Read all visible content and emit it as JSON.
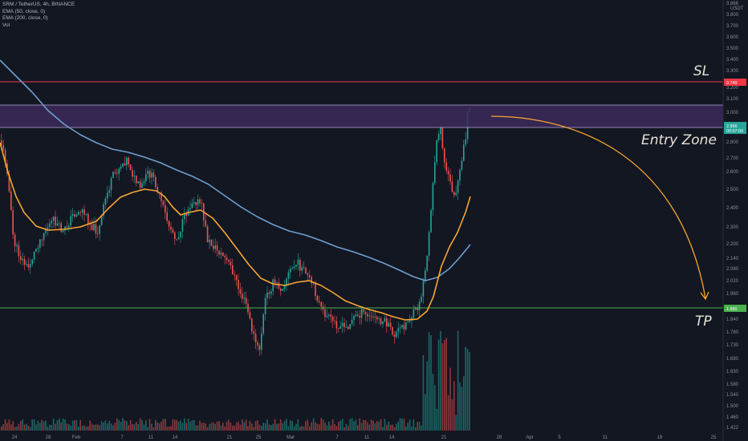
{
  "header": {
    "symbol_line": "SRM / TetherUS, 4h, BINANCE",
    "ema50_line": "EMA (50, close, 0)",
    "ema200_line": "EMA (200, close, 0)",
    "vol_line": "Vol"
  },
  "axis": {
    "currency_top": "3.866",
    "currency_unit": "USDT"
  },
  "annotations": {
    "sl": "SL",
    "entry": "Entry Zone",
    "tp": "TP"
  },
  "price_tags": {
    "sl": "3.740",
    "current_price": "2.956",
    "countdown": "00:07:00",
    "tp": "1.890"
  },
  "colors": {
    "background": "#131722",
    "sl_line": "#f23645",
    "tp_line": "#4caf50",
    "entry_zone_fill": "#3c2a5a",
    "ema50": "#f7a531",
    "ema200": "#6e9fcd",
    "candle_up": "#26a69a",
    "candle_down": "#ef5350",
    "forecast_arrow": "#f7a531"
  },
  "chart_data": {
    "type": "candlestick",
    "symbol": "SRM / TetherUS",
    "timeframe": "4h",
    "exchange": "BINANCE",
    "y_ticks": [
      "3.800",
      "3.700",
      "3.600",
      "3.500",
      "3.400",
      "3.300",
      "3.200",
      "3.100",
      "3.000",
      "2.900",
      "2.800",
      "2.700",
      "2.600",
      "2.500",
      "2.400",
      "2.300",
      "2.200",
      "2.140",
      "2.080",
      "2.020",
      "1.960",
      "1.900",
      "1.840",
      "1.780",
      "1.730",
      "1.680",
      "1.630",
      "1.580",
      "1.540",
      "1.500",
      "1.460",
      "1.422"
    ],
    "x_ticks": [
      "24",
      "28",
      "Feb",
      "7",
      "11",
      "14",
      "21",
      "25",
      "Mar",
      "7",
      "11",
      "14",
      "21",
      "28",
      "Apr",
      "5",
      "11",
      "18",
      "25"
    ],
    "key_points": [
      {
        "date": "Jan 20",
        "close": 2.85
      },
      {
        "date": "Jan 24",
        "close": 2.05
      },
      {
        "date": "Jan 28",
        "close": 2.35
      },
      {
        "date": "Feb 5",
        "close": 2.7
      },
      {
        "date": "Feb 9",
        "close": 2.55
      },
      {
        "date": "Feb 14",
        "close": 2.45
      },
      {
        "date": "Feb 21",
        "close": 1.98
      },
      {
        "date": "Feb 25",
        "close": 1.68
      },
      {
        "date": "Mar 3",
        "close": 2.07
      },
      {
        "date": "Mar 10",
        "close": 1.84
      },
      {
        "date": "Mar 16",
        "close": 1.79
      },
      {
        "date": "Mar 20",
        "close": 2.85
      },
      {
        "date": "Mar 23",
        "close": 2.5
      },
      {
        "date": "Mar 25",
        "close": 3.1
      },
      {
        "date": "Mar 25",
        "close": 2.956
      }
    ],
    "levels": {
      "stop_loss": 3.74,
      "entry_low": 2.91,
      "entry_high": 3.05,
      "take_profit": 1.89
    }
  }
}
